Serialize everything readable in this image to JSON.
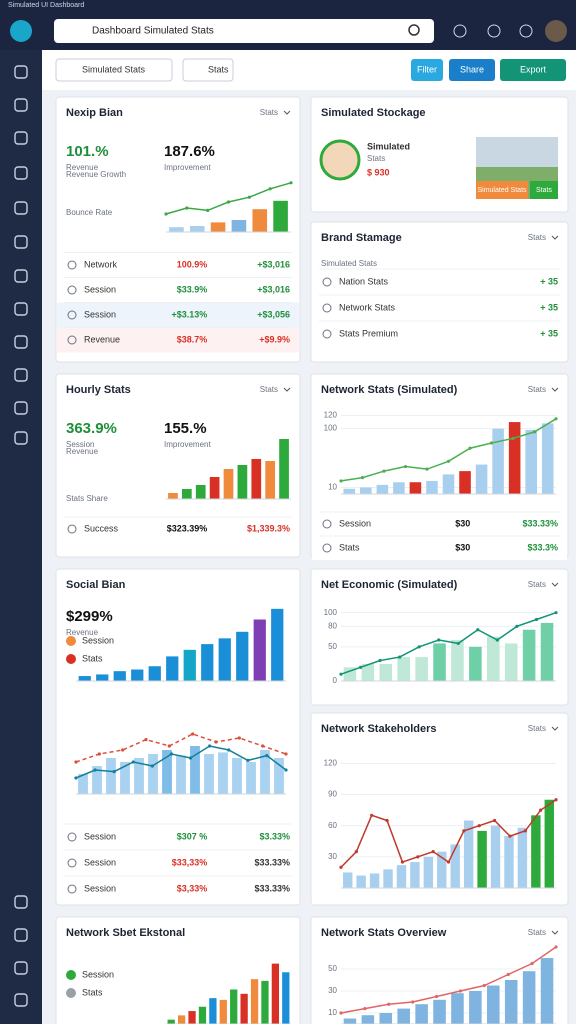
{
  "header": {
    "title": "Simulated UI Dashboard",
    "search": "Dashboard Simulated Stats"
  },
  "toolbar": {
    "select": "Simulated Stats",
    "tab": "Stats",
    "buttons": [
      "Filter",
      "Share",
      "Export"
    ]
  },
  "cards": [
    {
      "title": "Nexip Bian",
      "menu": "Stats",
      "kpis": [
        {
          "value": "101.%",
          "label": "Revenue",
          "color": "#1e8f3a"
        },
        {
          "value": "187.6%",
          "label": "Improvement",
          "color": "#111111"
        }
      ],
      "notes": [
        "Revenue Growth",
        "Bounce Rate"
      ],
      "chart": {
        "ylim": [
          0,
          100
        ],
        "values": [
          8,
          10,
          16,
          20,
          38,
          52
        ],
        "colors": [
          "#a9cfee",
          "#a9cfee",
          "#f08a3c",
          "#7fb3e0",
          "#f08a3c",
          "#2eaa3c"
        ],
        "line": [
          30,
          40,
          36,
          50,
          58,
          72,
          82
        ],
        "line_color": "#3aa845"
      },
      "rows": [
        {
          "label": "Network",
          "v1": "100.9%",
          "v2": "+$3,016",
          "c1": "#d93025",
          "c2": "#1e8f3a",
          "bg": "#ffffff"
        },
        {
          "label": "Session",
          "v1": "$33.9%",
          "v2": "+$3,016",
          "c1": "#1e8f3a",
          "c2": "#1e8f3a",
          "bg": "#ffffff"
        },
        {
          "label": "Session",
          "v1": "+$3.13%",
          "v2": "+$3,056",
          "c1": "#1e8f3a",
          "c2": "#1e8f3a",
          "bg": "#eef4fc"
        },
        {
          "label": "Revenue",
          "v1": "$38.7%",
          "v2": "+$9.9%",
          "c1": "#d93025",
          "c2": "#d93025",
          "bg": "#fdf1f1"
        }
      ]
    },
    {
      "title": "Simulated Stockage",
      "profile": {
        "name": "Simulated",
        "role": "Stats",
        "value": "$ 930"
      },
      "buttons": [
        "Simulated Stats",
        "Stats"
      ]
    },
    {
      "title": "Brand Stamage",
      "menu": "Stats",
      "notes": [
        "Simulated Stats"
      ],
      "rows": [
        {
          "label": "Nation Stats",
          "v2": "+ 35",
          "c2": "#1e8f3a",
          "bg": "#ffffff"
        },
        {
          "label": "Network Stats",
          "v2": "+ 35",
          "c2": "#1e8f3a",
          "bg": "#ffffff"
        },
        {
          "label": "Stats Premium",
          "v2": "+ 35",
          "c2": "#1e8f3a",
          "bg": "#ffffff"
        }
      ]
    },
    {
      "title": "Hourly Stats",
      "menu": "Stats",
      "kpis": [
        {
          "value": "363.9%",
          "label": "Session",
          "color": "#1e8f3a"
        },
        {
          "value": "155.%",
          "label": "Improvement",
          "color": "#111111"
        }
      ],
      "notes": [
        "Revenue",
        "Stats Share"
      ],
      "chart": {
        "ylim": [
          0,
          70
        ],
        "values": [
          6,
          10,
          14,
          22,
          30,
          34,
          40,
          38,
          60
        ],
        "colors": [
          "#f08a3c",
          "#2eaa3c",
          "#2eaa3c",
          "#d93025",
          "#f08a3c",
          "#2eaa3c",
          "#d93025",
          "#f08a3c",
          "#2eaa3c"
        ]
      },
      "rows": [
        {
          "label": "Success",
          "v1": "$323.39%",
          "v2": "$1,339.3%",
          "c1": "#111111",
          "c2": "#d93025",
          "bg": "#ffffff"
        }
      ]
    },
    {
      "title": "Network Stats (Simulated)",
      "menu": "Stats",
      "chart": {
        "ylim": [
          0,
          130
        ],
        "yticks": [
          10,
          100,
          120
        ],
        "values": [
          8,
          10,
          14,
          18,
          18,
          20,
          30,
          35,
          45,
          100,
          110,
          98,
          108
        ],
        "colors": [
          "#a9cfee",
          "#a9cfee",
          "#a9cfee",
          "#a9cfee",
          "#d93025",
          "#a9cfee",
          "#a9cfee",
          "#d93025",
          "#a9cfee",
          "#a9cfee",
          "#d93025",
          "#a9cfee",
          "#a9cfee"
        ],
        "line": [
          20,
          25,
          35,
          42,
          38,
          50,
          70,
          78,
          85,
          95,
          115
        ],
        "line_color": "#4caf50"
      },
      "rows": [
        {
          "label": "Session",
          "v1": "$30",
          "v2": "$33.33%",
          "c1": "#111111",
          "c2": "#1e8f3a",
          "bg": "#ffffff"
        },
        {
          "label": "Stats",
          "v1": "$30",
          "v2": "$33.3%",
          "c1": "#111111",
          "c2": "#1e8f3a",
          "bg": "#ffffff"
        }
      ]
    },
    {
      "title": "Social Bian",
      "kpis": [
        {
          "value": "$299%",
          "label": "Revenue",
          "color": "#111111"
        }
      ],
      "items": [
        {
          "label": "Session",
          "color": "#f08a3c"
        },
        {
          "label": "Stats",
          "color": "#d93025"
        }
      ],
      "chart": {
        "ylim": [
          0,
          100
        ],
        "values": [
          6,
          8,
          12,
          14,
          18,
          30,
          38,
          45,
          52,
          60,
          75,
          88
        ],
        "colors": [
          "#1a8fd8",
          "#1a8fd8",
          "#1a8fd8",
          "#1a8fd8",
          "#1a8fd8",
          "#1a8fd8",
          "#13a6c8",
          "#1a8fd8",
          "#1a8fd8",
          "#1a8fd8",
          "#7e3fb5",
          "#1a8fd8"
        ]
      },
      "chart2": {
        "ylim": [
          0,
          100
        ],
        "values": [
          25,
          35,
          45,
          40,
          45,
          50,
          55,
          48,
          60,
          50,
          52,
          45,
          40,
          55,
          45
        ],
        "colors": [
          "#a9d2f0",
          "#a9d2f0",
          "#a9d2f0",
          "#a9d2f0",
          "#a9d2f0",
          "#a9d2f0",
          "#7fbce8",
          "#a9d2f0",
          "#7fbce8",
          "#a9d2f0",
          "#a9d2f0",
          "#a9d2f0",
          "#a9d2f0",
          "#a9d2f0",
          "#a9d2f0"
        ],
        "line": [
          20,
          30,
          28,
          40,
          35,
          50,
          45,
          60,
          55,
          42,
          48,
          30
        ],
        "line_color": "#12809a",
        "line2": [
          40,
          50,
          55,
          68,
          60,
          75,
          65,
          70,
          60,
          50
        ],
        "line2_color": "#d9503a"
      },
      "rows": [
        {
          "label": "Session",
          "v1": "$307 %",
          "v2": "$3.33%",
          "c1": "#1e8f3a",
          "c2": "#1e8f3a",
          "bg": "#ffffff"
        },
        {
          "label": "Session",
          "v1": "$33,33%",
          "v2": "$33.33%",
          "c1": "#d93025",
          "c2": "#333333",
          "bg": "#ffffff"
        },
        {
          "label": "Session",
          "v1": "$3,33%",
          "v2": "$33.33%",
          "c1": "#d93025",
          "c2": "#333333",
          "bg": "#ffffff"
        }
      ]
    },
    {
      "title": "Net Economic (Simulated)",
      "menu": "Stats",
      "chart": {
        "ylim": [
          0,
          120
        ],
        "yticks": [
          0,
          50,
          80,
          100
        ],
        "values": [
          20,
          25,
          25,
          35,
          35,
          55,
          60,
          50,
          65,
          55,
          75,
          85
        ],
        "colors": [
          "#bfe8d6",
          "#bfe8d6",
          "#bfe8d6",
          "#bfe8d6",
          "#bfe8d6",
          "#6fcfa6",
          "#bfe8d6",
          "#6fcfa6",
          "#bfe8d6",
          "#bfe8d6",
          "#6fcfa6",
          "#6fcfa6"
        ],
        "line": [
          10,
          20,
          30,
          35,
          50,
          60,
          55,
          75,
          60,
          80,
          90,
          100
        ],
        "line_color": "#139477"
      }
    },
    {
      "title": "Network Stakeholders",
      "menu": "Stats",
      "chart": {
        "ylim": [
          0,
          130
        ],
        "yticks": [
          30,
          60,
          90,
          120
        ],
        "values": [
          15,
          12,
          14,
          18,
          22,
          25,
          30,
          35,
          42,
          65,
          55,
          60,
          50,
          58,
          70,
          85
        ],
        "colors": [
          "#a9cfee",
          "#a9cfee",
          "#a9cfee",
          "#a9cfee",
          "#a9cfee",
          "#a9cfee",
          "#a9cfee",
          "#a9cfee",
          "#a9cfee",
          "#a9cfee",
          "#2eaa3c",
          "#a9cfee",
          "#a9cfee",
          "#a9cfee",
          "#2eaa3c",
          "#2eaa3c"
        ],
        "line": [
          20,
          35,
          70,
          65,
          25,
          30,
          35,
          25,
          55,
          60,
          65,
          50,
          55,
          75,
          85
        ],
        "line_color": "#c0392b"
      }
    },
    {
      "title": "Network Sbet Ekstonal",
      "items": [
        {
          "label": "Session",
          "color": "#2eaa3c"
        },
        {
          "label": "Stats",
          "color": "#9aa0a6"
        }
      ],
      "chart": {
        "ylim": [
          0,
          80
        ],
        "values": [
          5,
          10,
          15,
          20,
          30,
          28,
          40,
          35,
          52,
          50,
          70,
          60
        ],
        "colors": [
          "#2eaa3c",
          "#f08a3c",
          "#d93025",
          "#2eaa3c",
          "#1a8fd8",
          "#f08a3c",
          "#2eaa3c",
          "#d93025",
          "#f08a3c",
          "#2eaa3c",
          "#d93025",
          "#1a8fd8"
        ]
      }
    },
    {
      "title": "Network Stats Overview",
      "menu": "Stats",
      "chart": {
        "ylim": [
          0,
          70
        ],
        "yticks": [
          10,
          30,
          50
        ],
        "values": [
          5,
          8,
          10,
          14,
          18,
          22,
          28,
          30,
          35,
          40,
          48,
          60
        ],
        "colors": [
          "#7fb3e0",
          "#7fb3e0",
          "#7fb3e0",
          "#7fb3e0",
          "#7fb3e0",
          "#7fb3e0",
          "#7fb3e0",
          "#7fb3e0",
          "#7fb3e0",
          "#7fb3e0",
          "#7fb3e0",
          "#7fb3e0"
        ],
        "line": [
          10,
          14,
          18,
          20,
          25,
          30,
          35,
          45,
          55,
          70
        ],
        "line_color": "#e06666"
      }
    }
  ]
}
